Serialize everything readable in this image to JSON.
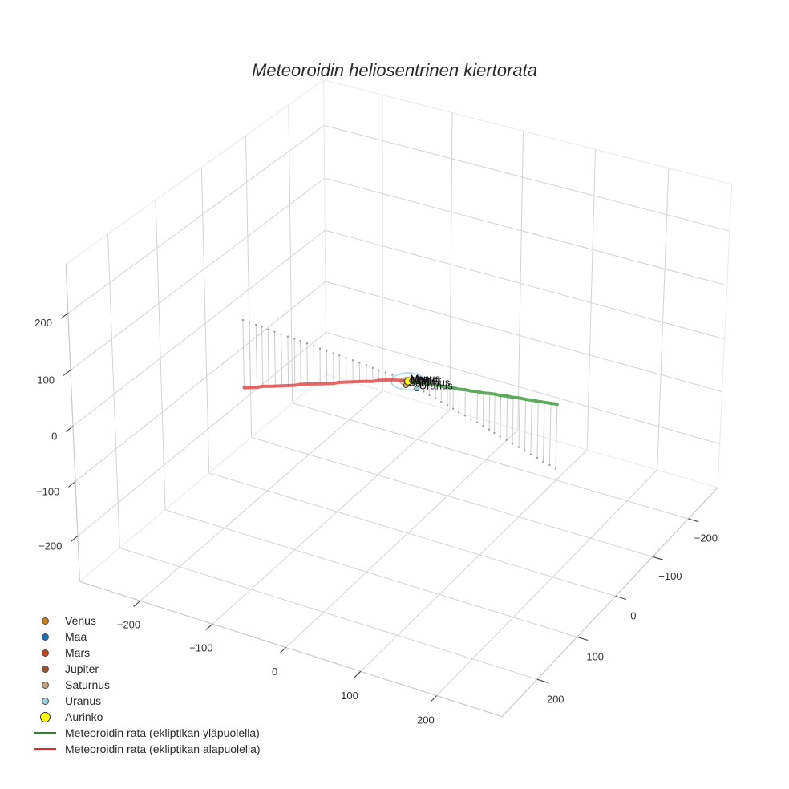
{
  "chart_data": {
    "type": "scatter3d",
    "title": "Meteoroidin heliosentrinen kiertorata",
    "grid": true,
    "legend": {
      "position": "bottom-left",
      "orientation": "vertical"
    },
    "axes": {
      "x": {
        "title": "",
        "range": [
          -285,
          285
        ],
        "ticks": [
          -200,
          -100,
          0,
          100,
          200
        ],
        "tick_labels": [
          "−200",
          "−100",
          "0",
          "100",
          "200"
        ]
      },
      "y": {
        "title": "",
        "range": [
          -285,
          285
        ],
        "ticks": [
          -200,
          -100,
          0,
          100,
          200
        ],
        "tick_labels": [
          "−200",
          "−100",
          "0",
          "100",
          "200"
        ]
      },
      "z": {
        "title": "",
        "range": [
          -285,
          285
        ],
        "ticks": [
          -200,
          -100,
          0,
          100,
          200
        ],
        "tick_labels": [
          "−200",
          "−100",
          "0",
          "100",
          "200"
        ]
      }
    },
    "series": [
      {
        "name": "Venus",
        "mode": "markers+text",
        "text": "Venus",
        "color": "#c8810f",
        "marker_size": 6,
        "x": [
          -0.5
        ],
        "y": [
          0.55
        ],
        "z": [
          0
        ],
        "orbit_radius": 0.72
      },
      {
        "name": "Maa",
        "mode": "markers+text",
        "text": "Maa",
        "color": "#1f6fb6",
        "marker_size": 6,
        "x": [
          0.8
        ],
        "y": [
          -0.6
        ],
        "z": [
          0
        ],
        "orbit_radius": 1.0
      },
      {
        "name": "Mars",
        "mode": "markers+text",
        "text": "Mars",
        "color": "#c2431a",
        "marker_size": 6,
        "x": [
          1.3
        ],
        "y": [
          0.7
        ],
        "z": [
          0
        ],
        "orbit_radius": 1.52
      },
      {
        "name": "Jupiter",
        "mode": "markers+text",
        "text": "Jupiter",
        "color": "#9c5433",
        "marker_size": 6,
        "x": [
          4.8
        ],
        "y": [
          1.4
        ],
        "z": [
          0
        ],
        "orbit_radius": 5.2
      },
      {
        "name": "Saturnus",
        "mode": "markers+text",
        "text": "Saturnus",
        "color": "#c6a27e",
        "marker_size": 6,
        "x": [
          9.6
        ],
        "y": [
          2.4
        ],
        "z": [
          0
        ],
        "orbit_radius": 9.6
      },
      {
        "name": "Uranus",
        "mode": "markers+text",
        "text": "Uranus",
        "color": "#9ccfe0",
        "marker_size": 6,
        "x": [
          10
        ],
        "y": [
          17.5
        ],
        "z": [
          0
        ],
        "orbit_radius": 20.2
      },
      {
        "name": "Aurinko",
        "mode": "markers",
        "color": "#ffff00",
        "marker_size": 9,
        "x": [
          0
        ],
        "y": [
          0
        ],
        "z": [
          0
        ]
      },
      {
        "name": "Meteoroidin rata (ekliptikan yläpuolella)",
        "mode": "lines",
        "color": "#228b22",
        "line_width": 4,
        "drop_lines_to_ecliptic": true,
        "x": [
          3,
          12,
          16,
          19,
          23,
          26,
          30,
          34,
          37,
          41,
          44,
          48,
          51,
          55,
          59,
          62,
          66,
          69,
          73,
          77,
          80,
          84,
          87,
          91
        ],
        "y": [
          8,
          28,
          38,
          48,
          58,
          68,
          78,
          88,
          98,
          108,
          118,
          128,
          138,
          147,
          157,
          167,
          177,
          187,
          197,
          207,
          217,
          227,
          237,
          247
        ],
        "z": [
          3,
          15,
          20,
          24,
          29,
          33,
          38,
          42,
          47,
          51,
          56,
          60,
          65,
          70,
          74,
          79,
          83,
          88,
          92,
          97,
          101,
          106,
          110,
          115
        ]
      },
      {
        "name": "Meteoroidin rata (ekliptikan alapuolella)",
        "mode": "lines",
        "color": "#dd2b2b",
        "line_width": 4,
        "drop_lines_to_ecliptic": true,
        "x": [
          -30,
          -29,
          -28,
          -27,
          -25,
          -24,
          -23,
          -22,
          -21,
          -20,
          -19,
          -18,
          -16,
          -15,
          -14,
          -13,
          -12,
          -11,
          -10,
          -9,
          -7,
          -6,
          -5,
          -4,
          -1
        ],
        "y": [
          -250,
          -240,
          -230,
          -221,
          -211,
          -201,
          -191,
          -181,
          -171,
          -162,
          -152,
          -142,
          -132,
          -122,
          -112,
          -103,
          -93,
          -83,
          -73,
          -63,
          -53,
          -44,
          -34,
          -24,
          -6
        ],
        "z": [
          -128,
          -123,
          -118,
          -112,
          -107,
          -102,
          -97,
          -92,
          -87,
          -81,
          -76,
          -71,
          -66,
          -61,
          -56,
          -50,
          -45,
          -40,
          -35,
          -30,
          -25,
          -19,
          -14,
          -9,
          -2
        ]
      }
    ]
  }
}
